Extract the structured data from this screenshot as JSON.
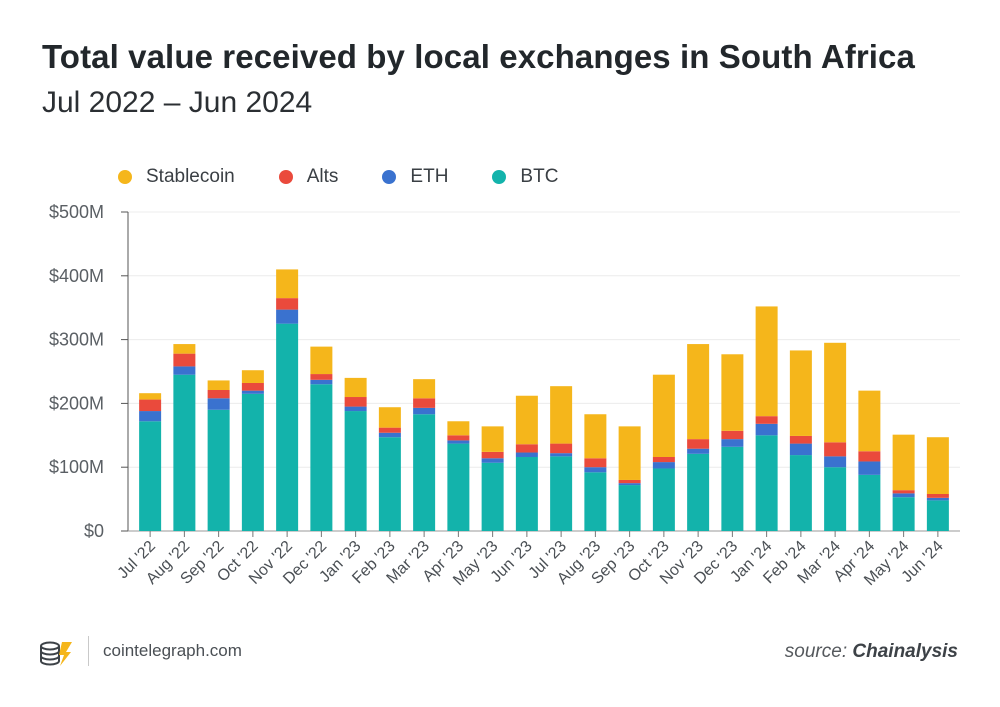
{
  "header": {
    "title": "Total value received by local exchanges in South Africa",
    "subtitle": "Jul 2022 – Jun 2024"
  },
  "legend": [
    {
      "label": "Stablecoin",
      "color": "#f5b61b"
    },
    {
      "label": "Alts",
      "color": "#ea4a3c"
    },
    {
      "label": "ETH",
      "color": "#3a72cf"
    },
    {
      "label": "BTC",
      "color": "#13b3ab"
    }
  ],
  "footer": {
    "site": "cointelegraph.com",
    "source_label": "source:",
    "source_name": "Chainalysis"
  },
  "chart_data": {
    "type": "bar",
    "stacked": true,
    "categories": [
      "Jul '22",
      "Aug '22",
      "Sep '22",
      "Oct '22",
      "Nov '22",
      "Dec '22",
      "Jan '23",
      "Feb '23",
      "Mar '23",
      "Apr '23",
      "May '23",
      "Jun '23",
      "Jul '23",
      "Aug '23",
      "Sep '23",
      "Oct '23",
      "Nov '23",
      "Dec '23",
      "Jan '24",
      "Feb '24",
      "Mar '24",
      "Apr '24",
      "May '24",
      "Jun '24"
    ],
    "series": [
      {
        "name": "BTC",
        "color": "#13b3ab",
        "values": [
          172,
          245,
          190,
          215,
          325,
          230,
          188,
          147,
          183,
          137,
          107,
          116,
          117,
          92,
          72,
          98,
          121,
          132,
          150,
          119,
          100,
          88,
          53,
          48
        ]
      },
      {
        "name": "ETH",
        "color": "#3a72cf",
        "values": [
          16,
          13,
          18,
          5,
          22,
          7,
          7,
          7,
          10,
          5,
          7,
          7,
          5,
          8,
          3,
          10,
          8,
          12,
          18,
          18,
          17,
          21,
          6,
          4
        ]
      },
      {
        "name": "Alts",
        "color": "#ea4a3c",
        "values": [
          18,
          20,
          13,
          12,
          18,
          9,
          15,
          8,
          15,
          8,
          10,
          13,
          15,
          14,
          5,
          8,
          15,
          13,
          12,
          12,
          22,
          16,
          5,
          6
        ]
      },
      {
        "name": "Stablecoin",
        "color": "#f5b61b",
        "values": [
          10,
          15,
          15,
          20,
          45,
          43,
          30,
          32,
          30,
          22,
          40,
          76,
          90,
          69,
          84,
          129,
          149,
          120,
          172,
          134,
          156,
          95,
          87,
          89
        ]
      }
    ],
    "y_ticks": [
      "$0",
      "$100M",
      "$200M",
      "$300M",
      "$400M",
      "$500M"
    ],
    "ylim": [
      0,
      500
    ],
    "grid": true,
    "legend_position": "top-left"
  }
}
